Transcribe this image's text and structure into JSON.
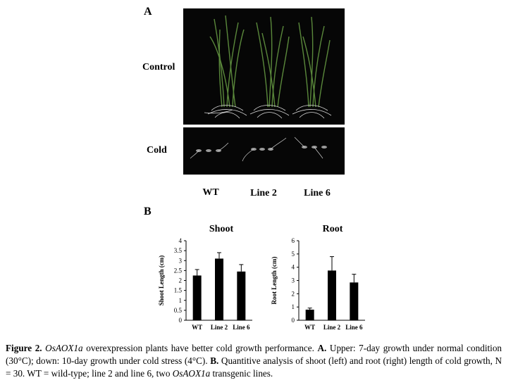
{
  "panel_a": {
    "letter": "A",
    "row_labels": {
      "control": "Control",
      "cold": "Cold"
    },
    "column_labels": [
      "WT",
      "Line 2",
      "Line 6"
    ]
  },
  "panel_b": {
    "letter": "B"
  },
  "chart_data": [
    {
      "type": "bar",
      "title": "Shoot",
      "ylabel": "Shoot Length (cm)",
      "xlabel": "",
      "categories": [
        "WT",
        "Line 2",
        "Line 6"
      ],
      "values": [
        2.25,
        3.1,
        2.45
      ],
      "errors": [
        0.3,
        0.3,
        0.35
      ],
      "ylim": [
        0,
        4
      ],
      "yticks": [
        "0",
        "0.5",
        "1",
        "1.5",
        "2",
        "2.5",
        "3",
        "3.5",
        "4"
      ],
      "bar_color": "#000000"
    },
    {
      "type": "bar",
      "title": "Root",
      "ylabel": "Root Length (cm)",
      "xlabel": "",
      "categories": [
        "WT",
        "Line 2",
        "Line 6"
      ],
      "values": [
        0.8,
        3.75,
        2.85
      ],
      "errors": [
        0.12,
        1.05,
        0.62
      ],
      "ylim": [
        0,
        6
      ],
      "yticks": [
        "0",
        "1",
        "2",
        "3",
        "4",
        "5",
        "6"
      ],
      "bar_color": "#000000"
    }
  ],
  "caption": {
    "figure_label": "Figure 2.",
    "gene_1": "OsAOX1a",
    "text_1": " overexpression plants have better cold growth performance. ",
    "label_a": "A.",
    "text_2": " Upper: 7-day growth under normal condition (30°C); down: 10-day growth under cold stress (4°C). ",
    "label_b": "B.",
    "text_3": " Quantitive analysis of shoot (left) and root (right) length of cold growth, N = 30. WT = wild-type; line 2 and line 6, two ",
    "gene_2": "OsAOX1a",
    "text_4": " transgenic lines."
  }
}
